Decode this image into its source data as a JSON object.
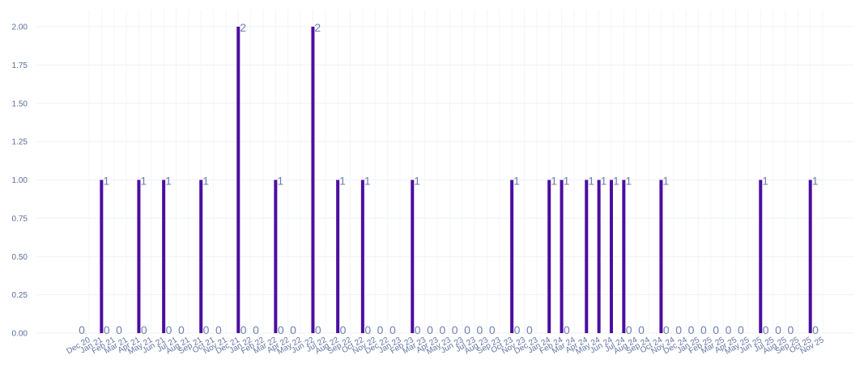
{
  "chart_data": {
    "type": "bar",
    "title": "",
    "xlabel": "",
    "ylabel": "",
    "ylim": [
      0,
      2.1
    ],
    "grid": true,
    "bar_color": "#4b0ea0",
    "yticks": [
      "0.00",
      "0.25",
      "0.50",
      "0.75",
      "1.00",
      "1.25",
      "1.50",
      "1.75",
      "2.00"
    ],
    "categories": [
      "Dec 20",
      "Jan 21",
      "Feb 21",
      "Mar 21",
      "Apr 21",
      "May 21",
      "Jun 21",
      "Jul 21",
      "Aug 21",
      "Sep 21",
      "Oct 21",
      "Nov 21",
      "Dec 21",
      "Jan 22",
      "Feb 22",
      "Mar 22",
      "Apr 22",
      "May 22",
      "Jun 22",
      "Jul 22",
      "Aug 22",
      "Sep 22",
      "Oct 22",
      "Nov 22",
      "Dec 22",
      "Jan 23",
      "Feb 23",
      "Mar 23",
      "Apr 23",
      "May 23",
      "Jun 23",
      "Jul 23",
      "Aug 23",
      "Sep 23",
      "Oct 23",
      "Nov 23",
      "Dec 23",
      "Jan 24",
      "Feb 24",
      "Mar 24",
      "Apr 24",
      "May 24",
      "Jun 24",
      "Jul 24",
      "Aug 24",
      "Sep 24",
      "Oct 24",
      "Nov 24",
      "Dec 24",
      "Jan 25",
      "Feb 25",
      "Mar 25",
      "Apr 25",
      "May 25",
      "Jun 25",
      "Jul 25",
      "Aug 25",
      "Sep 25",
      "Oct 25",
      "Nov 25"
    ],
    "values": [
      0,
      1,
      0,
      0,
      1,
      0,
      1,
      0,
      0,
      1,
      0,
      0,
      2,
      0,
      0,
      1,
      0,
      0,
      2,
      0,
      1,
      0,
      1,
      0,
      0,
      0,
      1,
      0,
      0,
      0,
      0,
      0,
      0,
      0,
      1,
      0,
      0,
      1,
      1,
      0,
      1,
      1,
      1,
      1,
      0,
      0,
      1,
      0,
      0,
      0,
      0,
      0,
      0,
      0,
      1,
      0,
      0,
      0,
      1,
      0
    ]
  }
}
